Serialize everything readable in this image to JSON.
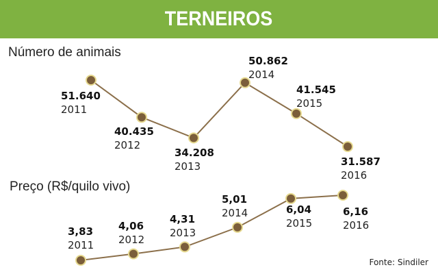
{
  "header": {
    "title": "TERNEIROS"
  },
  "colors": {
    "header_bg": "#7fb241",
    "line": "#8b6f4a",
    "marker_fill": "#7b5e3a",
    "marker_stroke": "#e6d98f"
  },
  "chart_data": [
    {
      "type": "line",
      "title": "Número de animais",
      "x": [
        "2011",
        "2012",
        "2013",
        "2014",
        "2015",
        "2016"
      ],
      "values": [
        51640,
        40435,
        34208,
        50862,
        41545,
        31587
      ],
      "value_labels": [
        "51.640",
        "40.435",
        "34.208",
        "50.862",
        "41.545",
        "31.587"
      ]
    },
    {
      "type": "line",
      "title": "Preço (R$/quilo vivo)",
      "x": [
        "2011",
        "2012",
        "2013",
        "2014",
        "2015",
        "2016"
      ],
      "values": [
        3.83,
        4.06,
        4.31,
        5.01,
        6.04,
        6.16
      ],
      "value_labels": [
        "3,83",
        "4,06",
        "4,31",
        "5,01",
        "6,04",
        "6,16"
      ]
    }
  ],
  "source": "Fonte: Sindiler"
}
